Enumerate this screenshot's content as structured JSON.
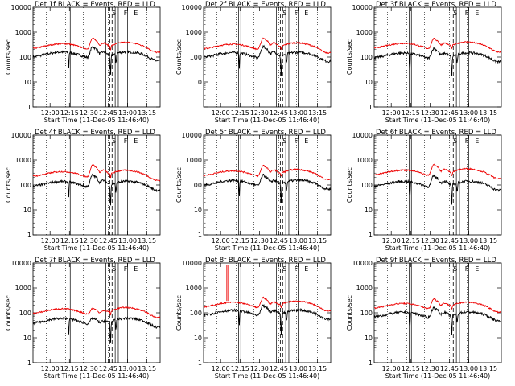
{
  "chart_data": {
    "type": "line",
    "layout": "3x3 grid of panels",
    "x_tick_labels": [
      "12:00",
      "12:15",
      "12:30",
      "12:45",
      "13:00",
      "13:15"
    ],
    "x_axis_label": "Start Time (11-Dec-05 11:46:40)",
    "y_axis_label": "Counts/sec",
    "y_scale": "log",
    "y_tick_labels": [
      "1",
      "10",
      "100",
      "1000",
      "10000"
    ],
    "ylim": [
      1,
      10000
    ],
    "xlim_hours": [
      11.78,
      13.42
    ],
    "grid": false,
    "series_colors": {
      "events": "#000000",
      "lld": "#ee0000"
    },
    "attenuator_letters": [
      "S",
      "F",
      "E"
    ],
    "dotted_lines_hours": [
      11.95,
      12.2,
      12.43,
      12.75,
      12.98,
      13.25
    ],
    "solid_lines_hours": [
      12.23,
      12.26,
      12.72,
      12.84,
      12.88,
      13.0
    ],
    "dashed_lines_hours": [
      12.77,
      12.8
    ],
    "panels": [
      {
        "title": "Det 1f BLACK = Events, RED = LLD",
        "lld_base": 260,
        "events_base": 120,
        "flare_gain": 3.2
      },
      {
        "title": "Det 2f BLACK = Events, RED = LLD",
        "lld_base": 250,
        "events_base": 115,
        "flare_gain": 3.4
      },
      {
        "title": "Det 3f BLACK = Events, RED = LLD",
        "lld_base": 270,
        "events_base": 110,
        "flare_gain": 3.0
      },
      {
        "title": "Det 4f BLACK = Events, RED = LLD",
        "lld_base": 260,
        "events_base": 105,
        "flare_gain": 3.6
      },
      {
        "title": "Det 5f BLACK = Events, RED = LLD",
        "lld_base": 280,
        "events_base": 115,
        "flare_gain": 3.2
      },
      {
        "title": "Det 6f BLACK = Events, RED = LLD",
        "lld_base": 300,
        "events_base": 105,
        "flare_gain": 3.3
      },
      {
        "title": "Det 7f BLACK = Events, RED = LLD",
        "lld_base": 110,
        "events_base": 45,
        "flare_gain": 2.0,
        "spike": false
      },
      {
        "title": "Det 8f BLACK = Events, RED = LLD",
        "lld_base": 200,
        "events_base": 95,
        "flare_gain": 3.0,
        "spike": true
      },
      {
        "title": "Det 9f BLACK = Events, RED = LLD",
        "lld_base": 180,
        "events_base": 80,
        "flare_gain": 3.0,
        "spike": false
      }
    ]
  }
}
